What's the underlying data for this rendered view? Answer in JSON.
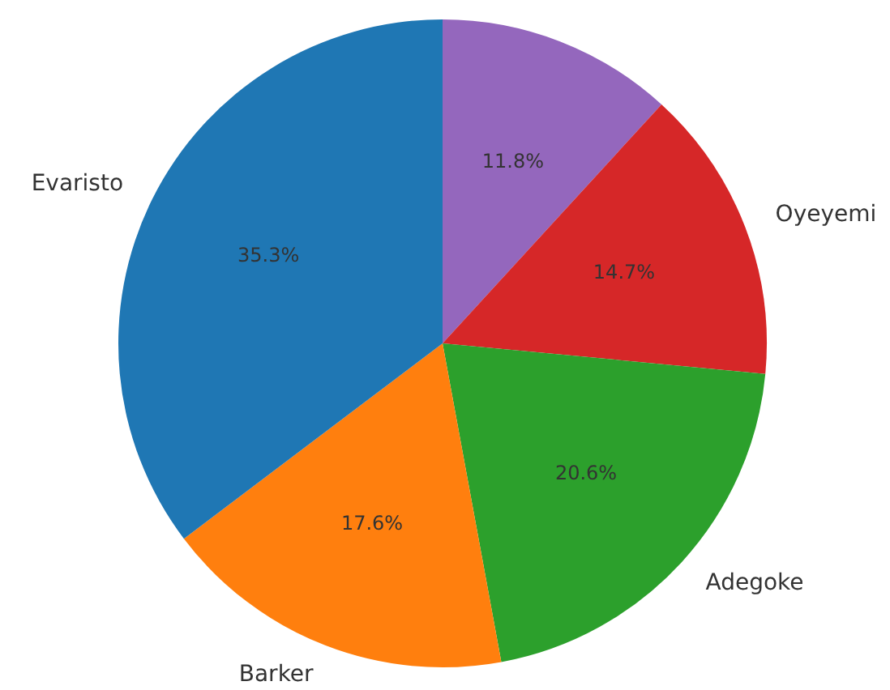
{
  "chart_data": {
    "type": "pie",
    "categories": [
      "Evaristo",
      "Barker",
      "Adegoke",
      "Oyeyemi",
      null
    ],
    "values": [
      35.3,
      17.6,
      20.6,
      14.7,
      11.8
    ],
    "colors": [
      "#1f77b4",
      "#ff7f0e",
      "#2ca02c",
      "#d62728",
      "#9467bd"
    ],
    "value_labels": [
      "35.3%",
      "17.6%",
      "20.6%",
      "14.7%",
      "11.8%"
    ],
    "legend": false
  }
}
